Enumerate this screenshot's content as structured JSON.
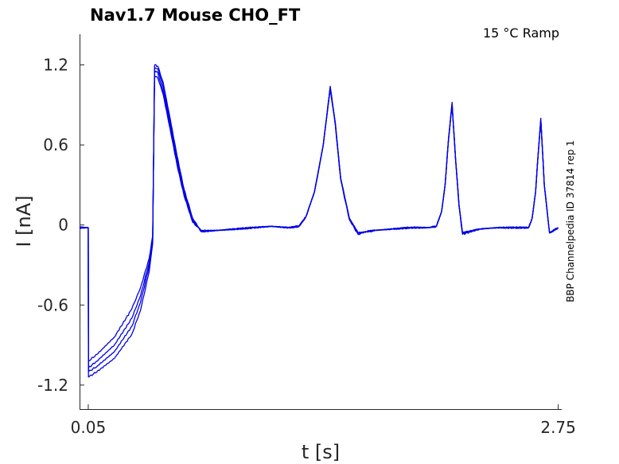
{
  "chart_data": {
    "type": "line",
    "title": "Nav1.7  Mouse  CHO_FT",
    "condition": "15 °C  Ramp",
    "side_label": "BBP Channelpedia ID 37814 rep 1",
    "xlabel": "t [s]",
    "ylabel": "I [nA]",
    "xlim": [
      0.0,
      2.77
    ],
    "ylim": [
      -1.38,
      1.43
    ],
    "x_ticks": [
      {
        "value": 0.05,
        "label": "0.05"
      },
      {
        "value": 2.75,
        "label": "2.75"
      }
    ],
    "y_ticks": [
      {
        "value": 1.2,
        "label": "1.2"
      },
      {
        "value": 0.6,
        "label": "0.6"
      },
      {
        "value": 0,
        "label": "0"
      },
      {
        "value": -0.6,
        "label": "-0.6"
      },
      {
        "value": -1.2,
        "label": "-1.2"
      }
    ],
    "color": "#0000e6",
    "series": [
      {
        "x": [
          0.0,
          0.05,
          0.051,
          0.1,
          0.2,
          0.3,
          0.35,
          0.4,
          0.42,
          0.431,
          0.45,
          0.48,
          0.52,
          0.56,
          0.6,
          0.65,
          0.7,
          0.8,
          0.9,
          1.0,
          1.1,
          1.2,
          1.26,
          1.3,
          1.35,
          1.4,
          1.44,
          1.47,
          1.5,
          1.55,
          1.6,
          1.65,
          1.7,
          1.8,
          1.9,
          2.0,
          2.05,
          2.08,
          2.1,
          2.12,
          2.14,
          2.16,
          2.18,
          2.2,
          2.3,
          2.4,
          2.5,
          2.58,
          2.6,
          2.62,
          2.63,
          2.65,
          2.67,
          2.7,
          2.75
        ],
        "y": [
          -0.02,
          -0.02,
          -1.02,
          -0.97,
          -0.84,
          -0.63,
          -0.47,
          -0.25,
          -0.08,
          1.12,
          1.1,
          0.98,
          0.72,
          0.45,
          0.22,
          0.02,
          -0.04,
          -0.04,
          -0.03,
          -0.02,
          -0.01,
          -0.02,
          -0.01,
          0.06,
          0.25,
          0.6,
          1.03,
          0.75,
          0.35,
          0.05,
          -0.06,
          -0.05,
          -0.04,
          -0.03,
          -0.02,
          -0.02,
          -0.01,
          0.1,
          0.3,
          0.65,
          0.9,
          0.5,
          0.15,
          -0.06,
          -0.03,
          -0.02,
          -0.02,
          -0.02,
          0.05,
          0.25,
          0.45,
          0.79,
          0.3,
          -0.06,
          -0.02
        ]
      },
      {
        "x": [
          0.0,
          0.05,
          0.051,
          0.1,
          0.2,
          0.3,
          0.35,
          0.4,
          0.42,
          0.431,
          0.45,
          0.48,
          0.52,
          0.56,
          0.6,
          0.65,
          0.7,
          0.8,
          0.9,
          1.0,
          1.1,
          1.2,
          1.26,
          1.3,
          1.35,
          1.4,
          1.44,
          1.47,
          1.5,
          1.55,
          1.6,
          1.65,
          1.7,
          1.8,
          1.9,
          2.0,
          2.05,
          2.08,
          2.1,
          2.12,
          2.14,
          2.16,
          2.18,
          2.2,
          2.3,
          2.4,
          2.5,
          2.58,
          2.6,
          2.62,
          2.63,
          2.65,
          2.67,
          2.7,
          2.75
        ],
        "y": [
          -0.02,
          -0.02,
          -1.07,
          -1.02,
          -0.9,
          -0.7,
          -0.53,
          -0.28,
          -0.1,
          1.16,
          1.14,
          1.0,
          0.74,
          0.47,
          0.23,
          0.03,
          -0.05,
          -0.04,
          -0.03,
          -0.02,
          -0.01,
          -0.02,
          -0.01,
          0.06,
          0.25,
          0.6,
          1.02,
          0.74,
          0.34,
          0.04,
          -0.07,
          -0.05,
          -0.04,
          -0.03,
          -0.02,
          -0.02,
          -0.01,
          0.1,
          0.3,
          0.64,
          0.9,
          0.5,
          0.14,
          -0.07,
          -0.03,
          -0.02,
          -0.02,
          -0.02,
          0.05,
          0.25,
          0.45,
          0.78,
          0.3,
          -0.06,
          -0.02
        ]
      },
      {
        "x": [
          0.0,
          0.05,
          0.051,
          0.1,
          0.2,
          0.3,
          0.35,
          0.4,
          0.42,
          0.431,
          0.45,
          0.48,
          0.52,
          0.56,
          0.6,
          0.65,
          0.7,
          0.8,
          0.9,
          1.0,
          1.1,
          1.2,
          1.26,
          1.3,
          1.35,
          1.4,
          1.44,
          1.47,
          1.5,
          1.55,
          1.6,
          1.65,
          1.7,
          1.8,
          1.9,
          2.0,
          2.05,
          2.08,
          2.1,
          2.12,
          2.14,
          2.16,
          2.18,
          2.2,
          2.3,
          2.4,
          2.5,
          2.58,
          2.6,
          2.62,
          2.63,
          2.65,
          2.67,
          2.7,
          2.75
        ],
        "y": [
          -0.02,
          -0.02,
          -1.1,
          -1.06,
          -0.95,
          -0.76,
          -0.58,
          -0.31,
          -0.12,
          1.18,
          1.17,
          1.04,
          0.77,
          0.49,
          0.25,
          0.04,
          -0.05,
          -0.04,
          -0.03,
          -0.02,
          -0.01,
          -0.02,
          -0.01,
          0.06,
          0.25,
          0.6,
          1.03,
          0.75,
          0.35,
          0.05,
          -0.06,
          -0.05,
          -0.04,
          -0.03,
          -0.02,
          -0.02,
          -0.01,
          0.1,
          0.3,
          0.65,
          0.91,
          0.5,
          0.15,
          -0.06,
          -0.03,
          -0.02,
          -0.02,
          -0.02,
          0.05,
          0.25,
          0.45,
          0.79,
          0.3,
          -0.06,
          -0.02
        ]
      },
      {
        "x": [
          0.0,
          0.05,
          0.051,
          0.1,
          0.2,
          0.3,
          0.35,
          0.4,
          0.42,
          0.431,
          0.45,
          0.48,
          0.52,
          0.56,
          0.6,
          0.65,
          0.7,
          0.8,
          0.9,
          1.0,
          1.1,
          1.2,
          1.26,
          1.3,
          1.35,
          1.4,
          1.44,
          1.47,
          1.5,
          1.55,
          1.6,
          1.65,
          1.7,
          1.8,
          1.9,
          2.0,
          2.05,
          2.08,
          2.1,
          2.12,
          2.14,
          2.16,
          2.18,
          2.2,
          2.3,
          2.4,
          2.5,
          2.58,
          2.6,
          2.62,
          2.63,
          2.65,
          2.67,
          2.7,
          2.75
        ],
        "y": [
          -0.02,
          -0.02,
          -1.14,
          -1.1,
          -1.0,
          -0.82,
          -0.64,
          -0.35,
          -0.14,
          1.2,
          1.19,
          1.07,
          0.8,
          0.52,
          0.27,
          0.05,
          -0.05,
          -0.04,
          -0.03,
          -0.02,
          -0.01,
          -0.02,
          -0.01,
          0.06,
          0.25,
          0.6,
          1.04,
          0.76,
          0.35,
          0.05,
          -0.06,
          -0.05,
          -0.04,
          -0.03,
          -0.02,
          -0.02,
          -0.01,
          0.1,
          0.3,
          0.65,
          0.92,
          0.5,
          0.15,
          -0.06,
          -0.03,
          -0.02,
          -0.02,
          -0.02,
          0.05,
          0.25,
          0.45,
          0.8,
          0.3,
          -0.06,
          -0.02
        ]
      }
    ]
  }
}
